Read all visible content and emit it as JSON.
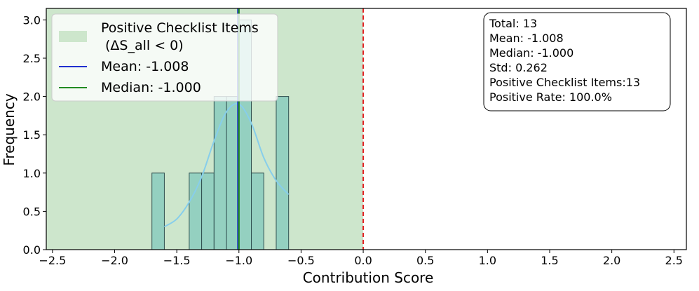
{
  "chart_data": {
    "type": "bar",
    "xlabel": "Contribution Score",
    "ylabel": "Frequency",
    "xlim": [
      -2.55,
      2.6
    ],
    "ylim": [
      0,
      3.15
    ],
    "grid": false,
    "legend_position": "top-left",
    "x_ticks": [
      -2.5,
      -2.0,
      -1.5,
      -1.0,
      -0.5,
      0.0,
      0.5,
      1.0,
      1.5,
      2.0,
      2.5
    ],
    "x_tick_labels": [
      "−2.5",
      "−2.0",
      "−1.5",
      "−1.0",
      "−0.5",
      "0.0",
      "0.5",
      "1.0",
      "1.5",
      "2.0",
      "2.5"
    ],
    "y_ticks": [
      0.0,
      0.5,
      1.0,
      1.5,
      2.0,
      2.5,
      3.0
    ],
    "y_tick_labels": [
      "0.0",
      "0.5",
      "1.0",
      "1.5",
      "2.0",
      "2.5",
      "3.0"
    ],
    "bins": [
      {
        "x0": -1.7,
        "x1": -1.6,
        "count": 1
      },
      {
        "x0": -1.6,
        "x1": -1.5,
        "count": 0
      },
      {
        "x0": -1.5,
        "x1": -1.4,
        "count": 0
      },
      {
        "x0": -1.4,
        "x1": -1.3,
        "count": 1
      },
      {
        "x0": -1.3,
        "x1": -1.2,
        "count": 1
      },
      {
        "x0": -1.2,
        "x1": -1.1,
        "count": 2
      },
      {
        "x0": -1.1,
        "x1": -1.0,
        "count": 2
      },
      {
        "x0": -1.0,
        "x1": -0.9,
        "count": 3
      },
      {
        "x0": -0.9,
        "x1": -0.8,
        "count": 1
      },
      {
        "x0": -0.8,
        "x1": -0.7,
        "count": 0
      },
      {
        "x0": -0.7,
        "x1": -0.6,
        "count": 2
      }
    ],
    "kde": [
      {
        "x": -1.6,
        "y": 0.3
      },
      {
        "x": -1.5,
        "y": 0.4
      },
      {
        "x": -1.4,
        "y": 0.62
      },
      {
        "x": -1.3,
        "y": 0.95
      },
      {
        "x": -1.2,
        "y": 1.42
      },
      {
        "x": -1.1,
        "y": 1.8
      },
      {
        "x": -1.0,
        "y": 1.9
      },
      {
        "x": -0.9,
        "y": 1.65
      },
      {
        "x": -0.8,
        "y": 1.2
      },
      {
        "x": -0.7,
        "y": 0.9
      },
      {
        "x": -0.6,
        "y": 0.72
      }
    ],
    "positive_region": {
      "x0": -2.55,
      "x1": 0.0
    },
    "mean": -1.008,
    "median": -1.0,
    "zero_line": 0.0,
    "colors": {
      "bar_fill": "#8ecdbf",
      "bar_edge": "#2f4f4f",
      "region": "#cde6cc",
      "kde": "#87ceeb",
      "mean": "#1f2fcf",
      "median": "#228b22",
      "zero": "#e02020"
    },
    "legend": {
      "region_label_1": "Positive Checklist Items",
      "region_label_2": "(ΔS_all < 0)",
      "mean_label": "Mean: -1.008",
      "median_label": "Median: -1.000"
    },
    "stats_box": {
      "total": "Total: 13",
      "mean": "Mean: -1.008",
      "median": "Median: -1.000",
      "std": "Std: 0.262",
      "positive_items": "Positive Checklist Items:13",
      "positive_rate": "Positive Rate: 100.0%"
    }
  }
}
